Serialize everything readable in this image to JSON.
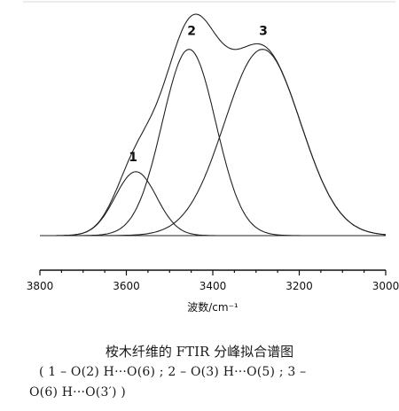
{
  "chart_data": {
    "type": "line",
    "x_reversed": true,
    "xlim": [
      3800,
      3000
    ],
    "xticks": [
      3800,
      3600,
      3400,
      3200,
      3000
    ],
    "xlabel": "波数/cm⁻¹",
    "ylabel": "",
    "grid": false,
    "baseline": 0.02,
    "series": [
      {
        "name": "1",
        "peak_center": 3578,
        "peak_height": 0.24,
        "peak_width": 48
      },
      {
        "name": "2",
        "peak_center": 3455,
        "peak_height": 0.7,
        "peak_width": 62
      },
      {
        "name": "3",
        "peak_center": 3285,
        "peak_height": 0.7,
        "peak_width": 88
      }
    ],
    "envelope_label": "",
    "peak_labels": [
      "1",
      "2",
      "3"
    ]
  },
  "caption": {
    "title": "桉木纤维的 FTIR 分峰拟合谱图",
    "line1": "( 1 – O(2) H···O(6) ; 2 – O(3) H···O(5) ; 3 –",
    "line2": "O(6) H···O(3′) )"
  }
}
